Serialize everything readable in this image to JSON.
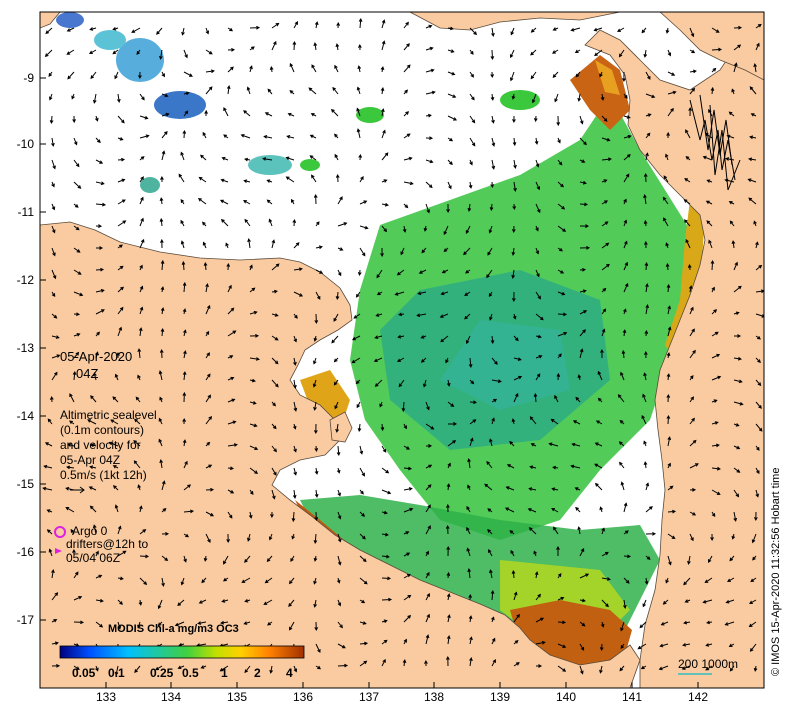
{
  "date_label": "05-Apr-2020",
  "time_label": "04Z",
  "legend_text": {
    "line1": "Altimetric sealevel",
    "line2": "(0.1m contours)",
    "line3": "and velocity for",
    "line4": "05-Apr 04Z",
    "line5": "0.5m/s (1kt 12h)"
  },
  "argo_label": "Argo 0",
  "drifters_line1": "drifters@12h to",
  "drifters_line2": "05/04 06Z",
  "colorbar": {
    "title": "MODIS Chl-a mg/m3 OC3",
    "ticks": [
      "0.05",
      "0.1",
      "0.25",
      "0.5",
      "1",
      "2",
      "4"
    ]
  },
  "y_ticks": [
    "-9",
    "-10",
    "-11",
    "-12",
    "-13",
    "-14",
    "-15",
    "-16",
    "-17"
  ],
  "x_ticks": [
    "133",
    "134",
    "135",
    "136",
    "137",
    "138",
    "139",
    "140",
    "141",
    "142"
  ],
  "scale_bar_label": "200  1000m",
  "credit": "© IMOS 15-Apr-2020 11:32:56 Hobart time",
  "colors": {
    "land": "#facba1",
    "sea": "#ffffff",
    "chl_low": "#1a7fd0",
    "chl_mid": "#3cc83c",
    "chl_high": "#c86414",
    "argo_marker": "#e020e0"
  }
}
